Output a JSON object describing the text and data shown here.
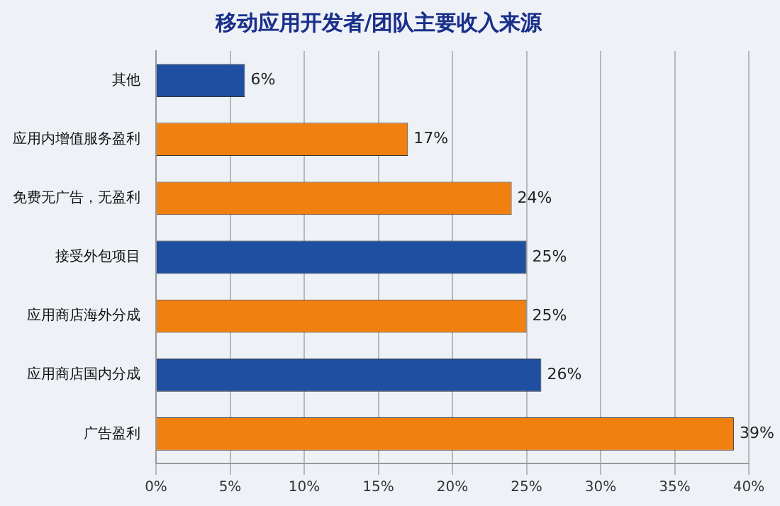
{
  "chart_data": {
    "type": "bar",
    "orientation": "horizontal",
    "title": "移动应用开发者/团队主要收入来源",
    "categories": [
      "其他",
      "应用内增值服务盈利",
      "免费无广告，无盈利",
      "接受外包项目",
      "应用商店海外分成",
      "应用商店国内分成",
      "广告盈利"
    ],
    "values": [
      6,
      17,
      24,
      25,
      25,
      26,
      39
    ],
    "colors": [
      "#1f4fa0",
      "#f08010",
      "#f08010",
      "#1f4fa0",
      "#f08010",
      "#1f4fa0",
      "#f08010"
    ],
    "value_labels": [
      "6%",
      "17%",
      "24%",
      "25%",
      "25%",
      "26%",
      "39%"
    ],
    "xlim": [
      0,
      40
    ],
    "xticks": [
      {
        "value": 0,
        "label": "0%"
      },
      {
        "value": 5,
        "label": "5%"
      },
      {
        "value": 10,
        "label": "10%"
      },
      {
        "value": 15,
        "label": "15%"
      },
      {
        "value": 20,
        "label": "20%"
      },
      {
        "value": 25,
        "label": "25%"
      },
      {
        "value": 30,
        "label": "30%"
      },
      {
        "value": 35,
        "label": "35%"
      },
      {
        "value": 40,
        "label": "40%"
      }
    ],
    "grid": "x",
    "legend": false
  }
}
